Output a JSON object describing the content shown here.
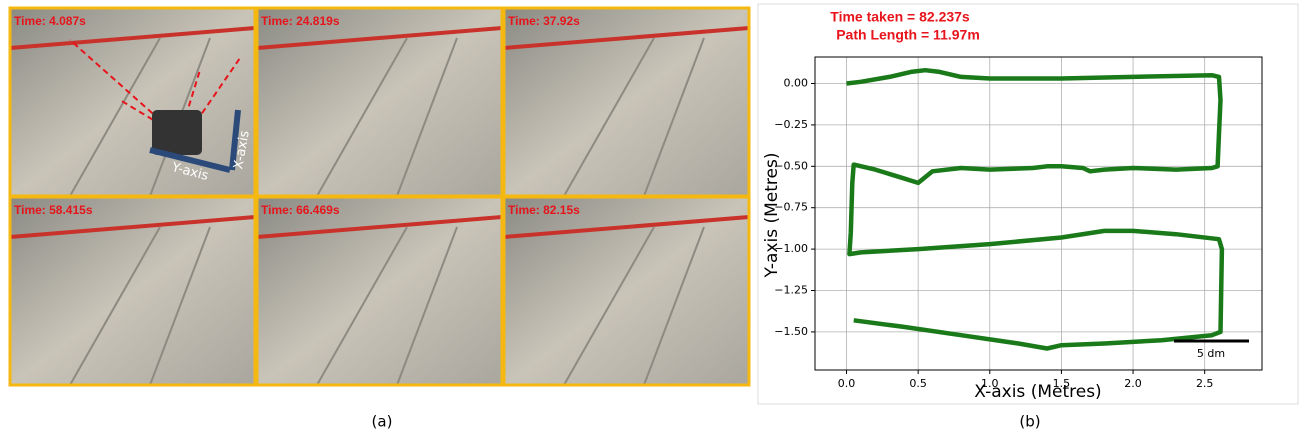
{
  "panel_a": {
    "caption": "(a)",
    "frames": [
      "Time: 4.087s",
      "Time: 24.819s",
      "Time: 37.92s",
      "Time: 58.415s",
      "Time: 66.469s",
      "Time: 82.15s"
    ],
    "axis_labels": [
      "Y-axis",
      "X-axis"
    ]
  },
  "chart_data": {
    "type": "line",
    "caption": "(b)",
    "annotations": [
      "Time taken = 82.237s",
      "Path Length = 11.97m"
    ],
    "x_label": "X-axis (Metres)",
    "y_label": "Y-axis (Metres)",
    "scale_bar": "5 dm",
    "color": "#1a7a1a",
    "x": [
      0,
      0.1,
      0.3,
      0.45,
      0.55,
      0.65,
      0.8,
      1.0,
      1.5,
      2.0,
      2.55,
      2.6,
      2.61,
      2.6,
      2.59,
      2.55,
      2.3,
      2.0,
      1.8,
      1.7,
      1.65,
      1.5,
      1.4,
      1.3,
      1.0,
      0.8,
      0.6,
      0.5,
      0.35,
      0.2,
      0.05,
      0.04,
      0.03,
      0.02,
      0.1,
      0.5,
      1.0,
      1.5,
      1.8,
      2.0,
      2.3,
      2.6,
      2.62,
      2.61,
      2.55,
      2.2,
      1.8,
      1.5,
      1.4,
      1.2,
      0.8,
      0.4,
      0.05
    ],
    "values": [
      0,
      0.01,
      0.04,
      0.07,
      0.08,
      0.07,
      0.04,
      0.03,
      0.03,
      0.04,
      0.05,
      0.04,
      -0.1,
      -0.3,
      -0.5,
      -0.51,
      -0.52,
      -0.51,
      -0.52,
      -0.53,
      -0.51,
      -0.5,
      -0.5,
      -0.51,
      -0.52,
      -0.51,
      -0.53,
      -0.6,
      -0.56,
      -0.52,
      -0.49,
      -0.6,
      -0.9,
      -1.03,
      -1.02,
      -1.0,
      -0.97,
      -0.93,
      -0.89,
      -0.89,
      -0.91,
      -0.94,
      -1.0,
      -1.5,
      -1.52,
      -1.55,
      -1.57,
      -1.58,
      -1.6,
      -1.57,
      -1.52,
      -1.47,
      -1.43
    ],
    "xlim": [
      -0.22,
      2.9
    ],
    "ylim": [
      -1.73,
      0.16
    ],
    "xticks": [
      {
        "value": 0,
        "label": "0.0"
      },
      0.5,
      {
        "value": 1,
        "label": "1.0"
      },
      1.5,
      {
        "value": 2,
        "label": "2.0"
      },
      2.5
    ],
    "yticks": [
      {
        "value": 0,
        "label": "0.00"
      },
      {
        "value": -0.25,
        "label": "−0.25"
      },
      {
        "value": -0.5,
        "label": "−0.50"
      },
      {
        "value": -0.75,
        "label": "−0.75"
      },
      {
        "value": -1,
        "label": "−1.00"
      },
      {
        "value": -1.25,
        "label": "−1.25"
      },
      {
        "value": -1.5,
        "label": "−1.50"
      }
    ],
    "grid": true
  }
}
